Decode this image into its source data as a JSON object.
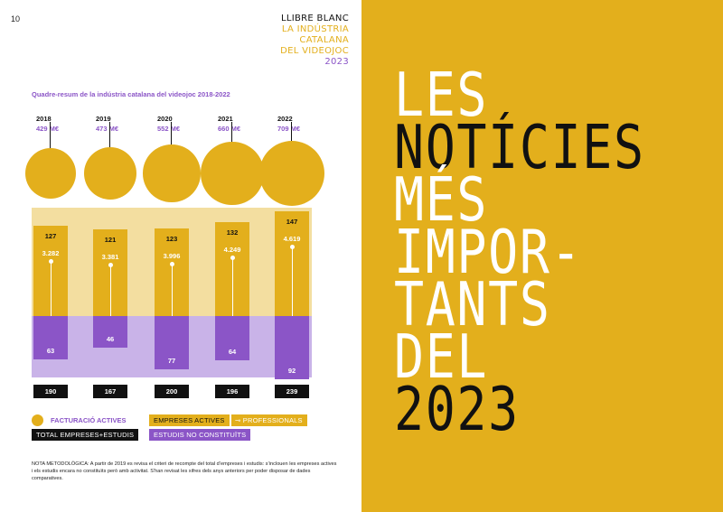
{
  "page_number": "10",
  "header": {
    "line1": "LLIBRE BLANC",
    "line2": "LA INDÚSTRIA",
    "line3": "CATALANA",
    "line4": "DEL VIDEOJOC",
    "line5": "2023"
  },
  "chart_data": {
    "type": "table",
    "title": "Quadre-resum de la indústria catalana del videojoc 2018-2022",
    "years": [
      "2018",
      "2019",
      "2020",
      "2021",
      "2022"
    ],
    "revenue": [
      "429 M€",
      "473 M€",
      "552 M€",
      "660 M€",
      "709 M€"
    ],
    "active_companies": [
      "127",
      "121",
      "123",
      "132",
      "147"
    ],
    "professionals": [
      "3.282",
      "3.381",
      "3.996",
      "4.249",
      "4.619"
    ],
    "studios_not_constituted": [
      "63",
      "46",
      "77",
      "64",
      "92"
    ],
    "total": [
      "190",
      "167",
      "200",
      "196",
      "239"
    ]
  },
  "legend": {
    "revenue": "FACTURACIÓ ACTIVES",
    "companies": "EMPRESES ACTIVES",
    "professionals": "PROFESSIONALS",
    "total": "TOTAL EMPRESES+ESTUDIS",
    "studios": "ESTUDIS NO CONSTITUÏTS"
  },
  "note": "NOTA METODOLÒGICA: A partir de 2019 es revisa el criteri de recompte del total d’empreses i estudis: s’inclouen les empreses actives i els estudis encara no constituïts però amb activitat. S’han revisat les xifres dels anys anteriors per poder disposar de dades comparatives.",
  "big_title": {
    "l1": "LES",
    "l2": "NOTÍCIES",
    "l3": "MÉS",
    "l4": "IMPOR-",
    "l5": "TANTS",
    "l6": "DEL",
    "l7": "2023"
  },
  "colors": {
    "yellow": "#e3af1c",
    "light_yellow": "#f3dea0",
    "purple": "#8b55c7",
    "light_purple": "#c9b3e8",
    "black": "#111111"
  }
}
